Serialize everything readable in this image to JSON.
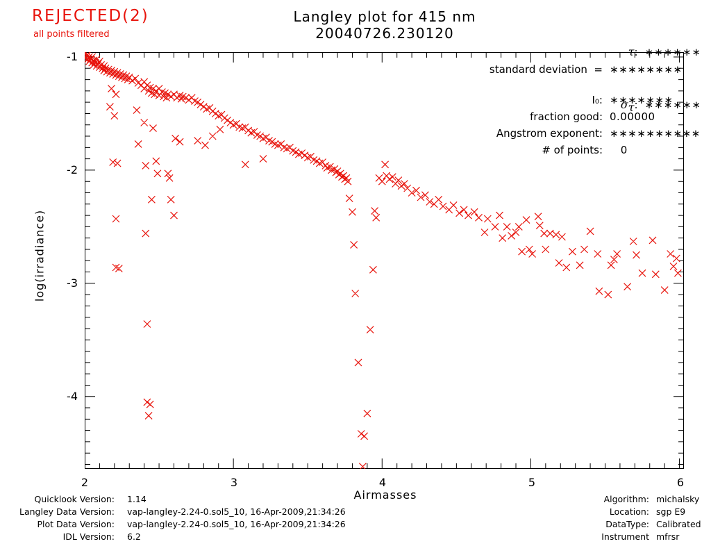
{
  "header": {
    "rejected": "REJECTED(2)",
    "rejected_sub": "all points filtered",
    "title_line1": "Langley plot for 415 nm",
    "title_line2": "20040726.230120",
    "tau": {
      "label": "τ",
      "colon": ":",
      "value": "∗∗∗∗∗∗"
    },
    "sigma": {
      "base": "σ",
      "sub": "τ",
      "colon": ":",
      "value": "∗∗∗∗∗∗"
    }
  },
  "stats": {
    "rows": [
      {
        "label": "standard deviation  =",
        "value": "∗∗∗∗∗∗∗∗"
      },
      {
        "label": "I₀:",
        "value": "∗∗∗∗∗∗∗"
      },
      {
        "label": "fraction good:",
        "value": "0.00000"
      },
      {
        "label": "Angstrom exponent:",
        "value": "∗∗∗∗∗∗∗∗∗∗"
      },
      {
        "label": "# of points:",
        "value": "   0"
      }
    ]
  },
  "footer_left": {
    "rows": [
      {
        "label": "Quicklook Version:",
        "value": "1.14"
      },
      {
        "label": "Langley Data Version:",
        "value": "vap-langley-2.24-0.sol5_10, 16-Apr-2009,21:34:26"
      },
      {
        "label": "Plot Data Version:",
        "value": "vap-langley-2.24-0.sol5_10, 16-Apr-2009,21:34:26"
      },
      {
        "label": "IDL Version:",
        "value": "6.2"
      }
    ]
  },
  "footer_right": {
    "rows": [
      {
        "label": "Algorithm:",
        "value": "michalsky"
      },
      {
        "label": "Location:",
        "value": "sgp E9"
      },
      {
        "label": "DataType:",
        "value": "Calibrated"
      },
      {
        "label": "Instrument",
        "value": "mfrsr"
      }
    ]
  },
  "colors": {
    "accent_red": "#e8140c",
    "axis": "#000000",
    "background": "#ffffff"
  },
  "chart_data": {
    "type": "scatter",
    "title": "Langley plot for 415 nm",
    "subtitle": "20040726.230120",
    "xlabel": "Airmasses",
    "ylabel": "log(irradiance)",
    "xlim": [
      2,
      6.03
    ],
    "ylim": [
      -4.64,
      -0.957
    ],
    "x_major_ticks": [
      2,
      3,
      4,
      5,
      6
    ],
    "y_major_ticks": [
      -1,
      -2,
      -3,
      -4
    ],
    "minor_tick_step": 0.1,
    "grid": false,
    "legend": "none",
    "marker": "x",
    "marker_size": 10,
    "marker_color": "#e8140c",
    "points": [
      [
        2.0,
        -0.97
      ],
      [
        2.0,
        -1.01
      ],
      [
        2.01,
        -0.99
      ],
      [
        2.02,
        -1.02
      ],
      [
        2.02,
        -0.98
      ],
      [
        2.03,
        -1.0
      ],
      [
        2.03,
        -1.04
      ],
      [
        2.04,
        -1.02
      ],
      [
        2.05,
        -1.05
      ],
      [
        2.05,
        -1.0
      ],
      [
        2.06,
        -1.03
      ],
      [
        2.06,
        -1.07
      ],
      [
        2.07,
        -1.05
      ],
      [
        2.08,
        -1.02
      ],
      [
        2.08,
        -1.08
      ],
      [
        2.09,
        -1.06
      ],
      [
        2.1,
        -1.04
      ],
      [
        2.1,
        -1.09
      ],
      [
        2.11,
        -1.07
      ],
      [
        2.12,
        -1.1
      ],
      [
        2.13,
        -1.08
      ],
      [
        2.13,
        -1.12
      ],
      [
        2.14,
        -1.1
      ],
      [
        2.15,
        -1.13
      ],
      [
        2.16,
        -1.11
      ],
      [
        2.17,
        -1.14
      ],
      [
        2.18,
        -1.12
      ],
      [
        2.19,
        -1.15
      ],
      [
        2.2,
        -1.13
      ],
      [
        2.21,
        -1.16
      ],
      [
        2.22,
        -1.14
      ],
      [
        2.23,
        -1.17
      ],
      [
        2.24,
        -1.15
      ],
      [
        2.25,
        -1.18
      ],
      [
        2.26,
        -1.16
      ],
      [
        2.27,
        -1.19
      ],
      [
        2.28,
        -1.17
      ],
      [
        2.29,
        -1.2
      ],
      [
        2.3,
        -1.18
      ],
      [
        2.32,
        -1.21
      ],
      [
        2.34,
        -1.19
      ],
      [
        2.36,
        -1.23
      ],
      [
        2.38,
        -1.25
      ],
      [
        2.4,
        -1.22
      ],
      [
        2.4,
        -1.28
      ],
      [
        2.42,
        -1.25
      ],
      [
        2.43,
        -1.3
      ],
      [
        2.44,
        -1.27
      ],
      [
        2.45,
        -1.32
      ],
      [
        2.46,
        -1.28
      ],
      [
        2.47,
        -1.33
      ],
      [
        2.48,
        -1.3
      ],
      [
        2.5,
        -1.28
      ],
      [
        2.5,
        -1.34
      ],
      [
        2.52,
        -1.31
      ],
      [
        2.53,
        -1.35
      ],
      [
        2.54,
        -1.32
      ],
      [
        2.55,
        -1.36
      ],
      [
        2.56,
        -1.33
      ],
      [
        2.58,
        -1.35
      ],
      [
        2.6,
        -1.33
      ],
      [
        2.62,
        -1.36
      ],
      [
        2.64,
        -1.34
      ],
      [
        2.65,
        -1.37
      ],
      [
        2.66,
        -1.35
      ],
      [
        2.68,
        -1.36
      ],
      [
        2.7,
        -1.38
      ],
      [
        2.72,
        -1.36
      ],
      [
        2.74,
        -1.39
      ],
      [
        2.76,
        -1.4
      ],
      [
        2.78,
        -1.42
      ],
      [
        2.8,
        -1.44
      ],
      [
        2.82,
        -1.46
      ],
      [
        2.84,
        -1.45
      ],
      [
        2.86,
        -1.48
      ],
      [
        2.88,
        -1.5
      ],
      [
        2.9,
        -1.52
      ],
      [
        2.92,
        -1.51
      ],
      [
        2.94,
        -1.54
      ],
      [
        2.96,
        -1.56
      ],
      [
        2.98,
        -1.58
      ],
      [
        3.0,
        -1.6
      ],
      [
        3.02,
        -1.59
      ],
      [
        3.04,
        -1.62
      ],
      [
        3.06,
        -1.63
      ],
      [
        3.08,
        -1.62
      ],
      [
        3.1,
        -1.65
      ],
      [
        3.12,
        -1.67
      ],
      [
        3.14,
        -1.66
      ],
      [
        3.16,
        -1.69
      ],
      [
        3.18,
        -1.7
      ],
      [
        3.2,
        -1.72
      ],
      [
        3.22,
        -1.71
      ],
      [
        3.24,
        -1.74
      ],
      [
        3.26,
        -1.75
      ],
      [
        3.28,
        -1.77
      ],
      [
        3.3,
        -1.78
      ],
      [
        3.32,
        -1.77
      ],
      [
        3.34,
        -1.8
      ],
      [
        3.36,
        -1.81
      ],
      [
        3.38,
        -1.8
      ],
      [
        3.4,
        -1.83
      ],
      [
        3.42,
        -1.84
      ],
      [
        3.44,
        -1.86
      ],
      [
        3.46,
        -1.85
      ],
      [
        3.48,
        -1.87
      ],
      [
        3.5,
        -1.89
      ],
      [
        3.52,
        -1.88
      ],
      [
        3.54,
        -1.91
      ],
      [
        3.56,
        -1.92
      ],
      [
        3.58,
        -1.94
      ],
      [
        3.6,
        -1.93
      ],
      [
        3.62,
        -1.96
      ],
      [
        3.63,
        -1.98
      ],
      [
        3.65,
        -1.97
      ],
      [
        3.66,
        -2.0
      ],
      [
        3.68,
        -1.99
      ],
      [
        3.69,
        -2.02
      ],
      [
        3.7,
        -2.01
      ],
      [
        3.71,
        -2.04
      ],
      [
        3.72,
        -2.03
      ],
      [
        3.73,
        -2.06
      ],
      [
        3.74,
        -2.05
      ],
      [
        3.75,
        -2.08
      ],
      [
        3.76,
        -2.07
      ],
      [
        3.77,
        -2.1
      ],
      [
        2.18,
        -1.28
      ],
      [
        2.21,
        -1.33
      ],
      [
        2.17,
        -1.44
      ],
      [
        2.2,
        -1.52
      ],
      [
        2.19,
        -1.93
      ],
      [
        2.22,
        -1.94
      ],
      [
        2.21,
        -2.43
      ],
      [
        2.21,
        -2.86
      ],
      [
        2.23,
        -2.87
      ],
      [
        2.35,
        -1.47
      ],
      [
        2.4,
        -1.58
      ],
      [
        2.46,
        -1.63
      ],
      [
        2.36,
        -1.77
      ],
      [
        2.41,
        -1.96
      ],
      [
        2.45,
        -2.26
      ],
      [
        2.41,
        -2.56
      ],
      [
        2.42,
        -3.36
      ],
      [
        2.42,
        -4.05
      ],
      [
        2.44,
        -4.07
      ],
      [
        2.43,
        -4.17
      ],
      [
        2.48,
        -1.92
      ],
      [
        2.49,
        -2.03
      ],
      [
        2.56,
        -2.03
      ],
      [
        2.57,
        -2.07
      ],
      [
        2.58,
        -2.26
      ],
      [
        2.6,
        -2.4
      ],
      [
        2.61,
        -1.72
      ],
      [
        2.64,
        -1.75
      ],
      [
        2.76,
        -1.74
      ],
      [
        2.81,
        -1.78
      ],
      [
        2.86,
        -1.7
      ],
      [
        2.91,
        -1.64
      ],
      [
        3.08,
        -1.95
      ],
      [
        3.2,
        -1.9
      ],
      [
        3.78,
        -2.25
      ],
      [
        3.8,
        -2.37
      ],
      [
        3.81,
        -2.66
      ],
      [
        3.82,
        -3.09
      ],
      [
        3.84,
        -3.7
      ],
      [
        3.86,
        -4.33
      ],
      [
        3.88,
        -4.35
      ],
      [
        3.87,
        -4.62
      ],
      [
        3.9,
        -4.15
      ],
      [
        3.92,
        -3.41
      ],
      [
        3.94,
        -2.88
      ],
      [
        3.96,
        -2.42
      ],
      [
        3.95,
        -2.36
      ],
      [
        4.02,
        -1.95
      ],
      [
        3.98,
        -2.07
      ],
      [
        4.0,
        -2.1
      ],
      [
        4.03,
        -2.05
      ],
      [
        4.05,
        -2.08
      ],
      [
        4.07,
        -2.06
      ],
      [
        4.09,
        -2.12
      ],
      [
        4.11,
        -2.09
      ],
      [
        4.13,
        -2.14
      ],
      [
        4.15,
        -2.12
      ],
      [
        4.17,
        -2.16
      ],
      [
        4.2,
        -2.2
      ],
      [
        4.23,
        -2.18
      ],
      [
        4.26,
        -2.24
      ],
      [
        4.29,
        -2.22
      ],
      [
        4.32,
        -2.28
      ],
      [
        4.35,
        -2.3
      ],
      [
        4.38,
        -2.26
      ],
      [
        4.41,
        -2.32
      ],
      [
        4.45,
        -2.35
      ],
      [
        4.48,
        -2.31
      ],
      [
        4.52,
        -2.38
      ],
      [
        4.55,
        -2.35
      ],
      [
        4.58,
        -2.4
      ],
      [
        4.62,
        -2.37
      ],
      [
        4.65,
        -2.42
      ],
      [
        4.69,
        -2.55
      ],
      [
        4.71,
        -2.43
      ],
      [
        4.76,
        -2.5
      ],
      [
        4.79,
        -2.4
      ],
      [
        4.81,
        -2.6
      ],
      [
        4.84,
        -2.5
      ],
      [
        4.87,
        -2.58
      ],
      [
        4.9,
        -2.55
      ],
      [
        4.92,
        -2.5
      ],
      [
        4.94,
        -2.72
      ],
      [
        4.97,
        -2.44
      ],
      [
        4.99,
        -2.7
      ],
      [
        5.01,
        -2.74
      ],
      [
        5.05,
        -2.41
      ],
      [
        5.06,
        -2.49
      ],
      [
        5.09,
        -2.56
      ],
      [
        5.1,
        -2.7
      ],
      [
        5.13,
        -2.56
      ],
      [
        5.17,
        -2.57
      ],
      [
        5.19,
        -2.82
      ],
      [
        5.21,
        -2.59
      ],
      [
        5.24,
        -2.86
      ],
      [
        5.28,
        -2.72
      ],
      [
        5.33,
        -2.84
      ],
      [
        5.36,
        -2.7
      ],
      [
        5.4,
        -2.54
      ],
      [
        5.45,
        -2.74
      ],
      [
        5.46,
        -3.07
      ],
      [
        5.52,
        -3.1
      ],
      [
        5.54,
        -2.84
      ],
      [
        5.56,
        -2.79
      ],
      [
        5.58,
        -2.74
      ],
      [
        5.65,
        -3.03
      ],
      [
        5.69,
        -2.63
      ],
      [
        5.71,
        -2.75
      ],
      [
        5.75,
        -2.91
      ],
      [
        5.82,
        -2.62
      ],
      [
        5.84,
        -2.92
      ],
      [
        5.9,
        -3.06
      ],
      [
        5.94,
        -2.74
      ],
      [
        5.96,
        -2.85
      ],
      [
        5.98,
        -2.78
      ],
      [
        5.99,
        -2.91
      ]
    ]
  }
}
